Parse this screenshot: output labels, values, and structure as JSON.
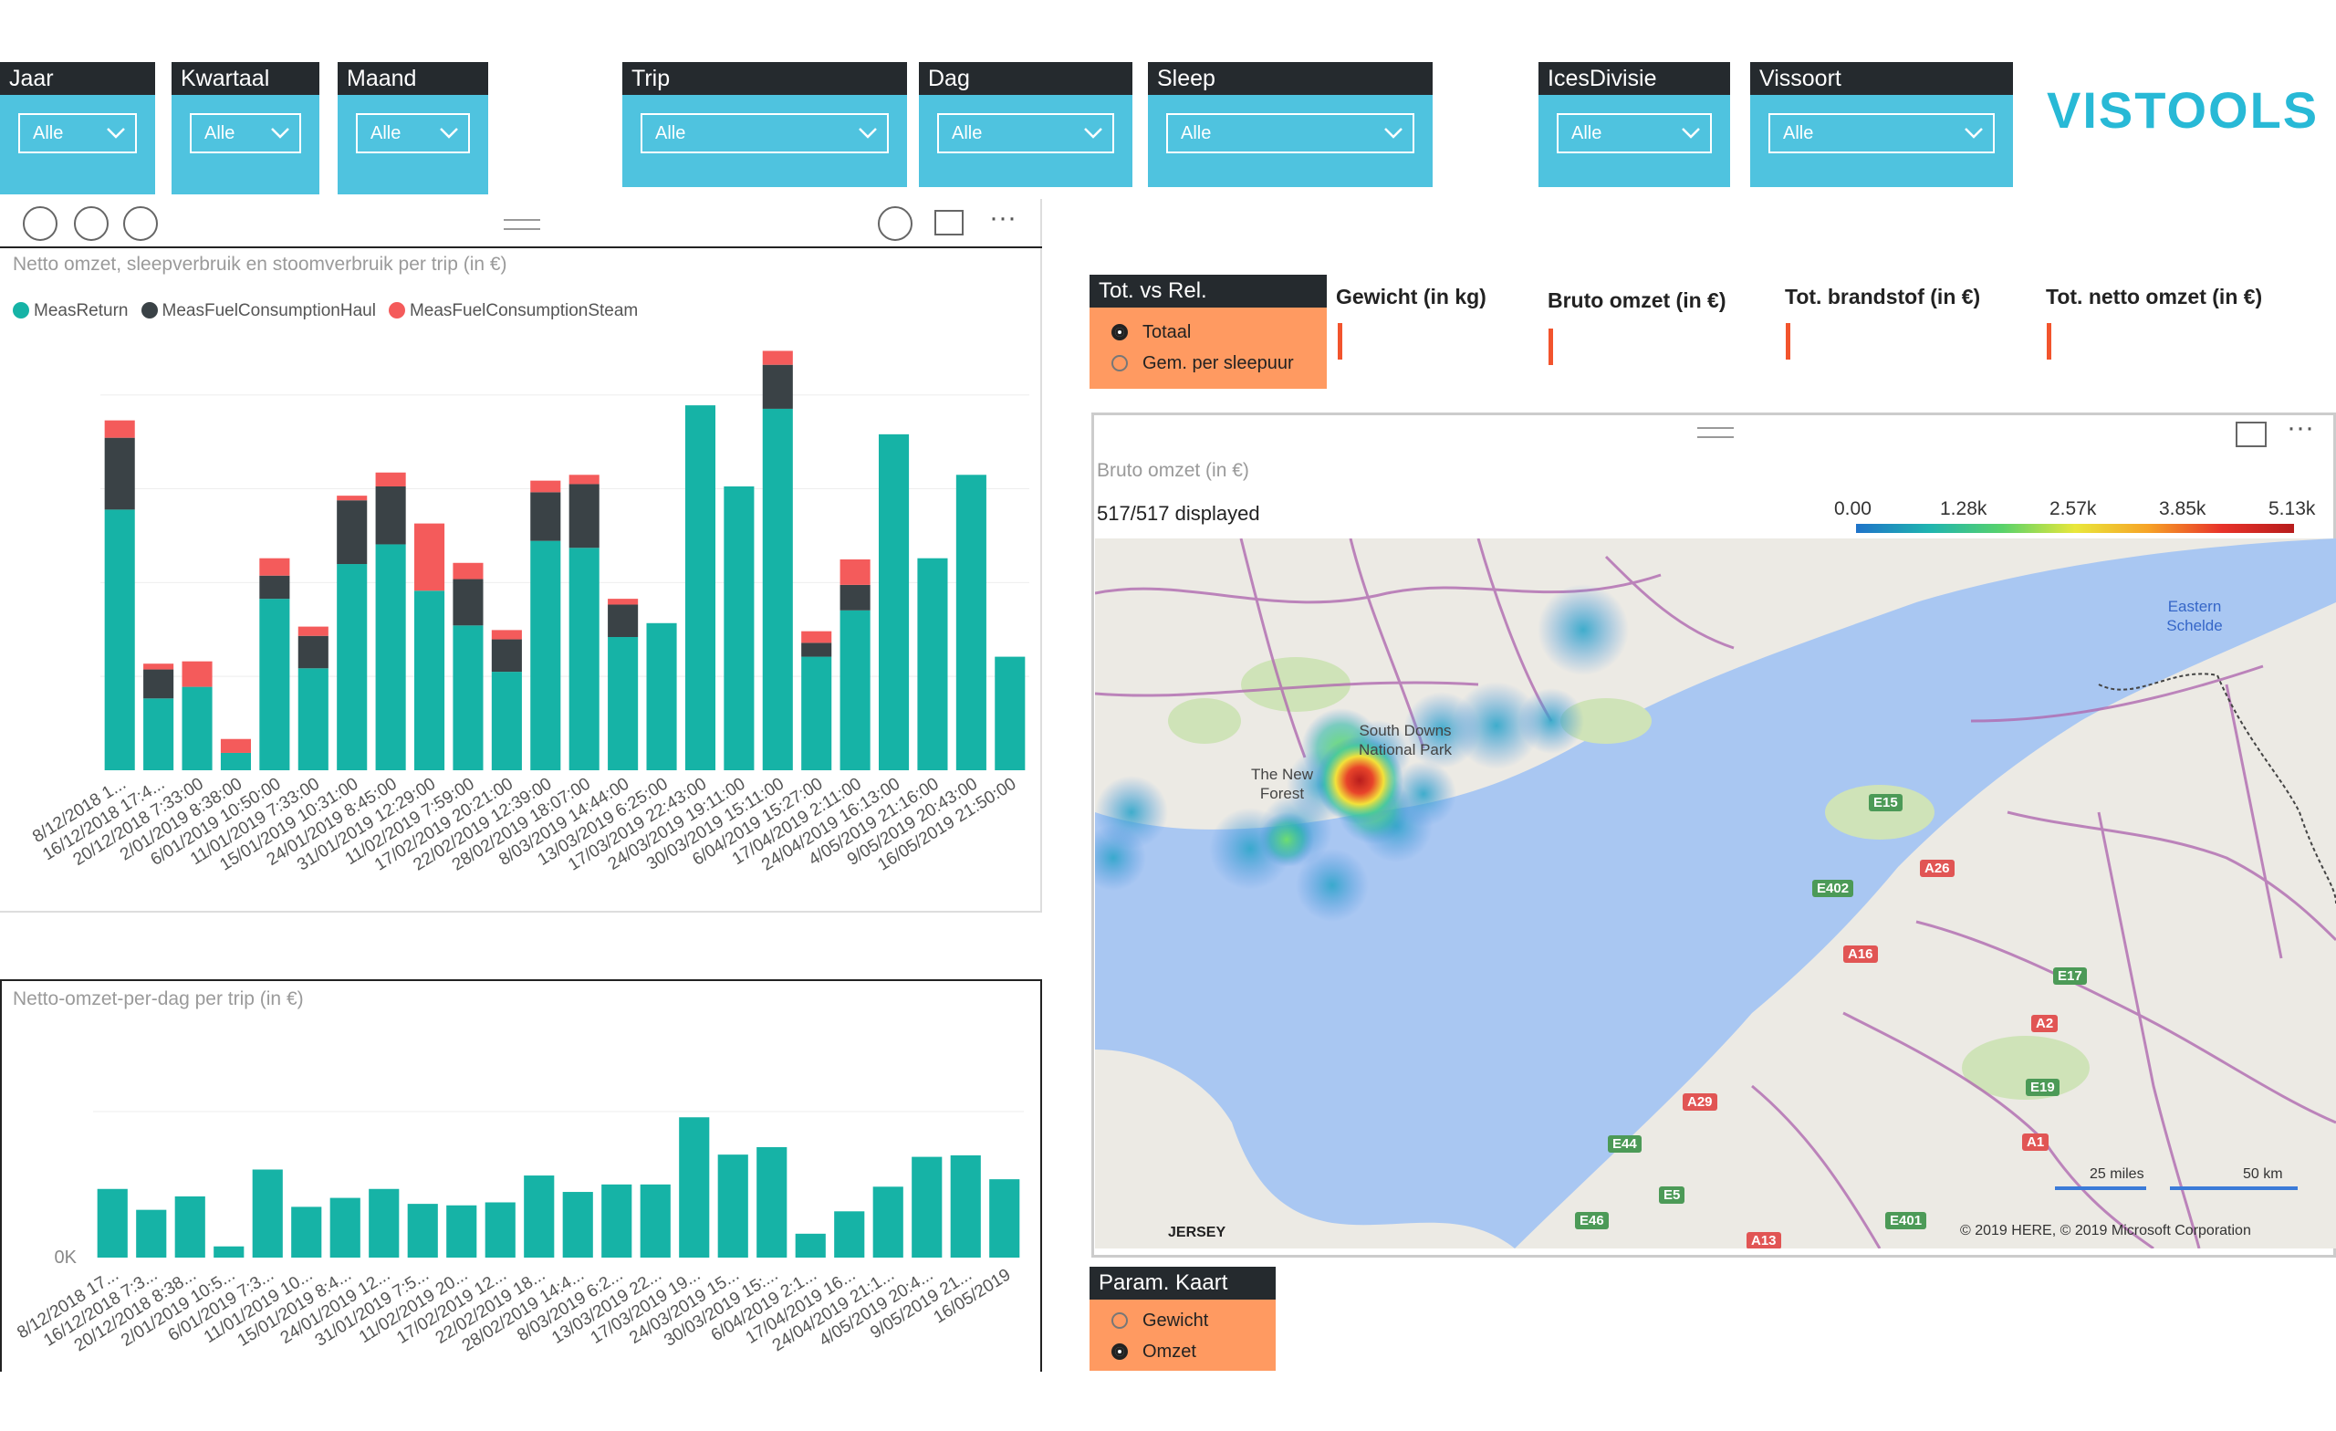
{
  "slicers": [
    {
      "id": "jaar",
      "title": "Jaar",
      "value": "Alle"
    },
    {
      "id": "kwartaal",
      "title": "Kwartaal",
      "value": "Alle"
    },
    {
      "id": "maand",
      "title": "Maand",
      "value": "Alle"
    },
    {
      "id": "trip",
      "title": "Trip",
      "value": "Alle"
    },
    {
      "id": "dag",
      "title": "Dag",
      "value": "Alle"
    },
    {
      "id": "sleep",
      "title": "Sleep",
      "value": "Alle"
    },
    {
      "id": "icesdivisie",
      "title": "IcesDivisie",
      "value": "Alle"
    },
    {
      "id": "vissoort",
      "title": "Vissoort",
      "value": "Alle"
    }
  ],
  "brand": "VISTOOLS",
  "colors": {
    "slicer_bg": "#4fc3df",
    "header_bg": "#252a2e",
    "radio_bg": "#ff9a61",
    "teal": "#16b3a6",
    "dark": "#3a4246",
    "red": "#f45b5b",
    "kpi": "#f2542d"
  },
  "toolbar_icons": [
    "drill-up-icon",
    "drill-down-icon",
    "expand-hierarchy-icon",
    "drill-mode-icon",
    "focus-mode-icon",
    "more-options-icon"
  ],
  "totvsrel": {
    "title": "Tot. vs Rel.",
    "options": [
      {
        "label": "Totaal",
        "selected": true
      },
      {
        "label": "Gem. per sleepuur",
        "selected": false
      }
    ]
  },
  "kpis": [
    "Gewicht (in kg)",
    "Bruto omzet (in €)",
    "Tot. brandstof (in €)",
    "Tot. netto omzet (in €)"
  ],
  "map": {
    "title": "Bruto omzet (in €)",
    "displayed": "517/517 displayed",
    "scale_labels": [
      "0.00",
      "1.28k",
      "2.57k",
      "3.85k",
      "5.13k"
    ],
    "places": [
      "South Downs National Park",
      "The New Forest",
      "Eastern Schelde",
      "JERSEY"
    ],
    "roads_red": [
      "A26",
      "A16",
      "A2",
      "A1",
      "A29",
      "A13"
    ],
    "roads_green": [
      "E15",
      "E402",
      "E17",
      "E19",
      "E44",
      "E5",
      "E46",
      "E401"
    ],
    "scalebar": [
      "25 miles",
      "50 km"
    ],
    "copyright": "© 2019 HERE, © 2019 Microsoft Corporation"
  },
  "param": {
    "title": "Param. Kaart",
    "options": [
      {
        "label": "Gewicht",
        "selected": false
      },
      {
        "label": "Omzet",
        "selected": true
      }
    ]
  },
  "chart_data": [
    {
      "type": "bar",
      "stacked": true,
      "title": "Netto omzet, sleepverbruik en stoomverbruik per trip (in €)",
      "legend_position": "top-left",
      "categories": [
        "8/12/2018 1...",
        "16/12/2018 17:4...",
        "20/12/2018 7:33:00",
        "2/01/2019 8:38:00",
        "6/01/2019 10:50:00",
        "11/01/2019 7:33:00",
        "15/01/2019 10:31:00",
        "24/01/2019 8:45:00",
        "31/01/2019 12:29:00",
        "11/02/2019 7:59:00",
        "17/02/2019 20:21:00",
        "22/02/2019 12:39:00",
        "28/02/2019 18:07:00",
        "8/03/2019 14:44:00",
        "13/03/2019 6:25:00",
        "17/03/2019 22:43:00",
        "24/03/2019 19:11:00",
        "30/03/2019 15:11:00",
        "6/04/2019 15:27:00",
        "17/04/2019 2:11:00",
        "24/04/2019 16:13:00",
        "4/05/2019 21:16:00",
        "9/05/2019 20:43:00",
        "16/05/2019 21:50:00"
      ],
      "series": [
        {
          "name": "MeasReturn",
          "color": "#16b3a6",
          "values": [
            225,
            62,
            72,
            15,
            148,
            88,
            178,
            195,
            155,
            125,
            85,
            198,
            192,
            115,
            127,
            315,
            245,
            312,
            98,
            138,
            290,
            183,
            255,
            98
          ]
        },
        {
          "name": "MeasFuelConsumptionHaul",
          "color": "#3a4246",
          "values": [
            62,
            25,
            0,
            0,
            20,
            28,
            55,
            50,
            0,
            40,
            28,
            42,
            55,
            28,
            0,
            0,
            0,
            38,
            12,
            22,
            0,
            0,
            0,
            0
          ]
        },
        {
          "name": "MeasFuelConsumptionSteam",
          "color": "#f45b5b",
          "values": [
            15,
            5,
            22,
            12,
            15,
            8,
            4,
            12,
            58,
            14,
            8,
            10,
            8,
            5,
            0,
            0,
            0,
            12,
            10,
            22,
            0,
            0,
            0,
            0
          ]
        }
      ]
    },
    {
      "type": "bar",
      "title": "Netto-omzet-per-dag per trip (in €)",
      "ytick": "0K",
      "categories": [
        "8/12/2018 17...",
        "16/12/2018 7:3...",
        "20/12/2018 8:38...",
        "2/01/2019 10:5...",
        "6/01/2019 7:3...",
        "11/01/2019 10...",
        "15/01/2019 8:4...",
        "24/01/2019 12...",
        "31/01/2019 7:5...",
        "11/02/2019 20...",
        "17/02/2019 12...",
        "22/02/2019 18...",
        "28/02/2019 14:4...",
        "8/03/2019 6:2...",
        "13/03/2019 22...",
        "17/03/2019 19...",
        "24/03/2019 15...",
        "30/03/2019 15:...",
        "6/04/2019 2:1...",
        "17/04/2019 16...",
        "24/04/2019 21:1...",
        "4/05/2019 20:4...",
        "9/05/2019 21...",
        "16/05/2019"
      ],
      "series": [
        {
          "name": "",
          "color": "#16b3a6",
          "values": [
            92,
            64,
            82,
            15,
            118,
            68,
            80,
            92,
            72,
            70,
            74,
            110,
            88,
            98,
            98,
            188,
            138,
            148,
            32,
            62,
            95,
            135,
            137,
            105
          ]
        }
      ]
    }
  ]
}
